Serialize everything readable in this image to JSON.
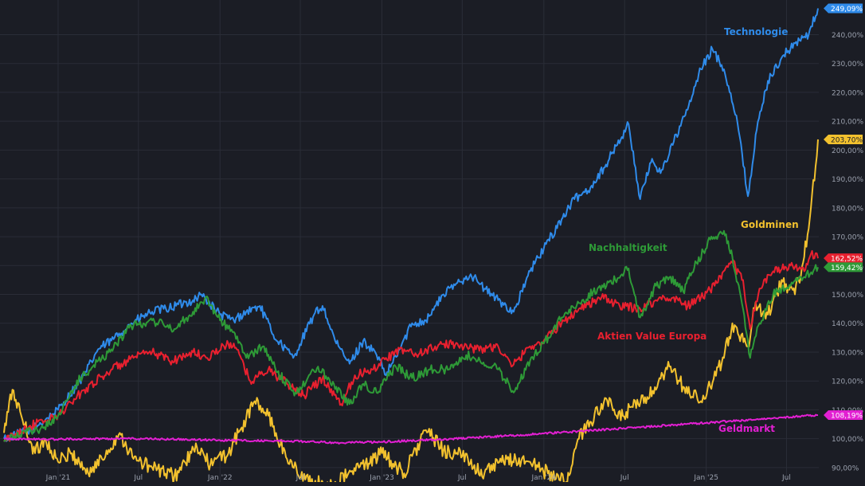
{
  "chart_data": {
    "type": "line",
    "y_axis": {
      "min": 85,
      "max": 252,
      "ticks": [
        "90,00%",
        "100,00%",
        "110,00%",
        "120,00%",
        "130,00%",
        "140,00%",
        "150,00%",
        "160,00%",
        "170,00%",
        "180,00%",
        "190,00%",
        "200,00%",
        "210,00%",
        "220,00%",
        "230,00%",
        "240,00%"
      ],
      "tick_values": [
        90,
        100,
        110,
        120,
        130,
        140,
        150,
        160,
        170,
        180,
        190,
        200,
        210,
        220,
        230,
        240
      ],
      "position": "right",
      "unit": "%"
    },
    "x_axis": {
      "start": "2020-09-01",
      "end": "2025-09-10",
      "ticks": [
        "Jan '21",
        "Jul",
        "Jan '22",
        "Jul",
        "Jan '23",
        "Jul",
        "Jan '24",
        "Jul",
        "Jan '25",
        "Jul"
      ],
      "tick_dates": [
        "2021-01-01",
        "2021-07-01",
        "2022-01-01",
        "2022-07-01",
        "2023-01-01",
        "2023-07-01",
        "2024-01-01",
        "2024-07-01",
        "2025-01-01",
        "2025-07-01"
      ]
    },
    "grid": true,
    "series": [
      {
        "name": "Technologie",
        "color": "#2f8bea",
        "label": "Technologie",
        "last_value_label": "249,09%",
        "last_value": 249.09,
        "points": [
          [
            "2020-09-01",
            100
          ],
          [
            "2020-11-01",
            103
          ],
          [
            "2021-01-01",
            110
          ],
          [
            "2021-03-01",
            122
          ],
          [
            "2021-04-01",
            131
          ],
          [
            "2021-05-01",
            134
          ],
          [
            "2021-06-15",
            140
          ],
          [
            "2021-08-01",
            144
          ],
          [
            "2021-09-01",
            145
          ],
          [
            "2021-11-01",
            148
          ],
          [
            "2021-11-20",
            150
          ],
          [
            "2022-01-01",
            143
          ],
          [
            "2022-02-01",
            141
          ],
          [
            "2022-03-01",
            144
          ],
          [
            "2022-04-01",
            146
          ],
          [
            "2022-05-01",
            136
          ],
          [
            "2022-06-15",
            128
          ],
          [
            "2022-08-01",
            143
          ],
          [
            "2022-08-20",
            146
          ],
          [
            "2022-09-20",
            133
          ],
          [
            "2022-10-20",
            126
          ],
          [
            "2022-11-20",
            134
          ],
          [
            "2022-12-20",
            129
          ],
          [
            "2023-01-10",
            122
          ],
          [
            "2023-02-10",
            131
          ],
          [
            "2023-03-10",
            140
          ],
          [
            "2023-04-10",
            141
          ],
          [
            "2023-05-20",
            150
          ],
          [
            "2023-06-20",
            154
          ],
          [
            "2023-07-20",
            157
          ],
          [
            "2023-08-20",
            152
          ],
          [
            "2023-09-20",
            148
          ],
          [
            "2023-10-25",
            144
          ],
          [
            "2023-12-01",
            158
          ],
          [
            "2024-01-01",
            166
          ],
          [
            "2024-02-10",
            176
          ],
          [
            "2024-03-10",
            183
          ],
          [
            "2024-04-15",
            187
          ],
          [
            "2024-05-20",
            195
          ],
          [
            "2024-07-10",
            209
          ],
          [
            "2024-08-05",
            183
          ],
          [
            "2024-09-01",
            197
          ],
          [
            "2024-09-20",
            192
          ],
          [
            "2024-10-20",
            203
          ],
          [
            "2024-11-20",
            214
          ],
          [
            "2024-12-20",
            228
          ],
          [
            "2025-01-15",
            235
          ],
          [
            "2025-02-10",
            228
          ],
          [
            "2025-03-10",
            212
          ],
          [
            "2025-04-05",
            184
          ],
          [
            "2025-04-25",
            207
          ],
          [
            "2025-05-20",
            224
          ],
          [
            "2025-06-20",
            232
          ],
          [
            "2025-07-20",
            237
          ],
          [
            "2025-08-20",
            240
          ],
          [
            "2025-09-10",
            249.09
          ]
        ]
      },
      {
        "name": "Goldminen",
        "color": "#f2c12e",
        "label": "Goldminen",
        "last_value_label": "203,70%",
        "last_value": 203.7,
        "points": [
          [
            "2020-09-01",
            102
          ],
          [
            "2020-09-20",
            117
          ],
          [
            "2020-10-10",
            108
          ],
          [
            "2020-11-10",
            95
          ],
          [
            "2020-12-01",
            100
          ],
          [
            "2021-01-01",
            92
          ],
          [
            "2021-02-01",
            95
          ],
          [
            "2021-03-10",
            88
          ],
          [
            "2021-04-10",
            93
          ],
          [
            "2021-05-20",
            102
          ],
          [
            "2021-06-20",
            93
          ],
          [
            "2021-08-01",
            90
          ],
          [
            "2021-09-20",
            87
          ],
          [
            "2021-11-10",
            97
          ],
          [
            "2021-12-10",
            91
          ],
          [
            "2022-01-20",
            95
          ],
          [
            "2022-03-01",
            107
          ],
          [
            "2022-03-20",
            113
          ],
          [
            "2022-04-20",
            108
          ],
          [
            "2022-06-01",
            93
          ],
          [
            "2022-07-20",
            85
          ],
          [
            "2022-09-10",
            84
          ],
          [
            "2022-11-10",
            90
          ],
          [
            "2023-01-01",
            95
          ],
          [
            "2023-02-20",
            88
          ],
          [
            "2023-04-10",
            103
          ],
          [
            "2023-05-20",
            96
          ],
          [
            "2023-07-01",
            94
          ],
          [
            "2023-08-20",
            88
          ],
          [
            "2023-10-10",
            93
          ],
          [
            "2023-12-01",
            92
          ],
          [
            "2024-01-10",
            88
          ],
          [
            "2024-02-20",
            85
          ],
          [
            "2024-03-20",
            100
          ],
          [
            "2024-05-20",
            114
          ],
          [
            "2024-06-15",
            107
          ],
          [
            "2024-08-01",
            112
          ],
          [
            "2024-09-10",
            117
          ],
          [
            "2024-10-10",
            125
          ],
          [
            "2024-11-10",
            118
          ],
          [
            "2024-12-20",
            113
          ],
          [
            "2025-01-10",
            118
          ],
          [
            "2025-02-10",
            128
          ],
          [
            "2025-03-01",
            140
          ],
          [
            "2025-04-05",
            132
          ],
          [
            "2025-04-20",
            145
          ],
          [
            "2025-05-20",
            143
          ],
          [
            "2025-06-20",
            155
          ],
          [
            "2025-07-20",
            150
          ],
          [
            "2025-08-10",
            163
          ],
          [
            "2025-08-25",
            180
          ],
          [
            "2025-09-10",
            203.7
          ]
        ]
      },
      {
        "name": "Aktien Value Europa",
        "color": "#e8202f",
        "label": "Aktien Value Europa",
        "last_value_label": "162,52%",
        "last_value": 162.52,
        "points": [
          [
            "2020-09-01",
            99
          ],
          [
            "2020-10-20",
            104
          ],
          [
            "2020-12-01",
            106
          ],
          [
            "2021-01-01",
            108
          ],
          [
            "2021-03-01",
            117
          ],
          [
            "2021-05-01",
            124
          ],
          [
            "2021-06-20",
            128
          ],
          [
            "2021-08-01",
            130
          ],
          [
            "2021-09-15",
            127
          ],
          [
            "2021-11-01",
            130
          ],
          [
            "2021-12-01",
            128
          ],
          [
            "2022-01-10",
            132
          ],
          [
            "2022-02-01",
            133
          ],
          [
            "2022-03-10",
            120
          ],
          [
            "2022-04-20",
            124
          ],
          [
            "2022-06-01",
            119
          ],
          [
            "2022-07-10",
            115
          ],
          [
            "2022-08-20",
            121
          ],
          [
            "2022-10-01",
            112
          ],
          [
            "2022-11-01",
            122
          ],
          [
            "2022-12-10",
            124
          ],
          [
            "2023-01-10",
            128
          ],
          [
            "2023-02-20",
            131
          ],
          [
            "2023-03-20",
            129
          ],
          [
            "2023-05-01",
            132
          ],
          [
            "2023-06-20",
            133
          ],
          [
            "2023-08-01",
            131
          ],
          [
            "2023-09-20",
            132
          ],
          [
            "2023-10-20",
            125
          ],
          [
            "2023-12-01",
            132
          ],
          [
            "2024-01-01",
            134
          ],
          [
            "2024-02-10",
            140
          ],
          [
            "2024-03-20",
            145
          ],
          [
            "2024-05-10",
            149
          ],
          [
            "2024-06-20",
            146
          ],
          [
            "2024-08-05",
            145
          ],
          [
            "2024-09-10",
            148
          ],
          [
            "2024-10-20",
            149
          ],
          [
            "2024-11-20",
            146
          ],
          [
            "2024-12-20",
            149
          ],
          [
            "2025-01-20",
            153
          ],
          [
            "2025-03-01",
            161
          ],
          [
            "2025-03-25",
            155
          ],
          [
            "2025-04-10",
            138
          ],
          [
            "2025-05-01",
            152
          ],
          [
            "2025-06-01",
            158
          ],
          [
            "2025-07-10",
            160
          ],
          [
            "2025-08-10",
            158
          ],
          [
            "2025-08-25",
            164
          ],
          [
            "2025-09-10",
            162.52
          ]
        ]
      },
      {
        "name": "Nachhaltigkeit",
        "color": "#2e9a37",
        "label": "Nachhaltigkeit",
        "last_value_label": "159,42%",
        "last_value": 159.42,
        "points": [
          [
            "2020-09-01",
            99
          ],
          [
            "2020-10-20",
            102
          ],
          [
            "2020-12-01",
            104
          ],
          [
            "2021-01-01",
            108
          ],
          [
            "2021-02-20",
            121
          ],
          [
            "2021-03-20",
            125
          ],
          [
            "2021-05-01",
            131
          ],
          [
            "2021-06-15",
            139
          ],
          [
            "2021-08-01",
            141
          ],
          [
            "2021-09-20",
            138
          ],
          [
            "2021-11-01",
            144
          ],
          [
            "2021-11-30",
            149
          ],
          [
            "2022-01-01",
            141
          ],
          [
            "2022-02-01",
            137
          ],
          [
            "2022-03-01",
            128
          ],
          [
            "2022-04-10",
            132
          ],
          [
            "2022-05-10",
            123
          ],
          [
            "2022-06-20",
            116
          ],
          [
            "2022-08-10",
            125
          ],
          [
            "2022-09-20",
            118
          ],
          [
            "2022-10-20",
            112
          ],
          [
            "2022-11-20",
            119
          ],
          [
            "2022-12-20",
            116
          ],
          [
            "2023-02-01",
            125
          ],
          [
            "2023-03-10",
            121
          ],
          [
            "2023-04-20",
            124
          ],
          [
            "2023-06-01",
            124
          ],
          [
            "2023-07-10",
            129
          ],
          [
            "2023-08-10",
            127
          ],
          [
            "2023-09-20",
            124
          ],
          [
            "2023-10-25",
            116
          ],
          [
            "2023-12-01",
            127
          ],
          [
            "2024-01-01",
            133
          ],
          [
            "2024-02-10",
            142
          ],
          [
            "2024-03-20",
            147
          ],
          [
            "2024-05-01",
            152
          ],
          [
            "2024-06-10",
            155
          ],
          [
            "2024-07-10",
            159
          ],
          [
            "2024-08-05",
            142
          ],
          [
            "2024-09-10",
            153
          ],
          [
            "2024-10-10",
            156
          ],
          [
            "2024-11-10",
            151
          ],
          [
            "2024-12-10",
            161
          ],
          [
            "2025-01-10",
            169
          ],
          [
            "2025-02-10",
            172
          ],
          [
            "2025-03-01",
            163
          ],
          [
            "2025-03-25",
            145
          ],
          [
            "2025-04-10",
            128
          ],
          [
            "2025-05-01",
            140
          ],
          [
            "2025-06-01",
            150
          ],
          [
            "2025-07-10",
            153
          ],
          [
            "2025-08-10",
            156
          ],
          [
            "2025-09-10",
            159.42
          ]
        ]
      },
      {
        "name": "Geldmarkt",
        "color": "#e21fd2",
        "label": "Geldmarkt",
        "last_value_label": "108,19%",
        "last_value": 108.19,
        "points": [
          [
            "2020-09-01",
            100
          ],
          [
            "2020-12-01",
            99.8
          ],
          [
            "2021-06-01",
            100.1
          ],
          [
            "2022-01-01",
            99.5
          ],
          [
            "2022-06-01",
            99.2
          ],
          [
            "2022-10-01",
            98.6
          ],
          [
            "2023-01-01",
            98.9
          ],
          [
            "2023-06-01",
            99.9
          ],
          [
            "2023-10-01",
            100.9
          ],
          [
            "2024-01-01",
            101.8
          ],
          [
            "2024-06-01",
            103.3
          ],
          [
            "2024-12-01",
            105.2
          ],
          [
            "2025-06-01",
            107.1
          ],
          [
            "2025-09-10",
            108.19
          ]
        ]
      }
    ]
  }
}
